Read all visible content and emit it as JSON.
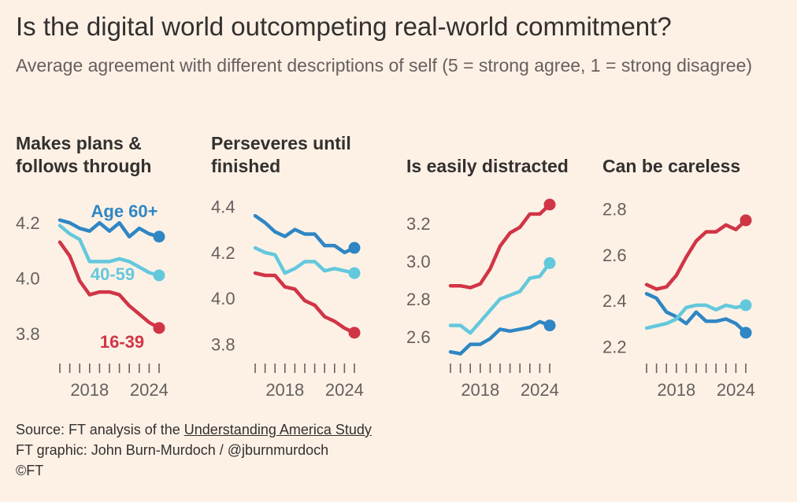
{
  "title": "Is the digital world outcompeting real-world commitment?",
  "subtitle": "Average agreement with different descriptions of self (5 = strong agree, 1 = strong disagree)",
  "colors": {
    "age60": "#2f86c4",
    "age40": "#64c8dc",
    "age16": "#d03546",
    "tick": "#66605c",
    "background": "#fdf1e6"
  },
  "footer": {
    "source_prefix": "Source: FT analysis of the ",
    "source_link": "Understanding America Study",
    "credit": "FT graphic: John Burn-Murdoch / @jburnmurdoch",
    "copyright": "©FT"
  },
  "chart_data": [
    {
      "type": "line",
      "title": "Makes plans & follows through",
      "x": [
        2015,
        2016,
        2017,
        2018,
        2019,
        2020,
        2021,
        2022,
        2023,
        2024,
        2025
      ],
      "ylim": [
        3.72,
        4.3
      ],
      "yticks": [
        3.8,
        4.0,
        4.2
      ],
      "ytick_labels": [
        "3.8",
        "4.0",
        "4.2"
      ],
      "xtick_labels": [
        "2018",
        "2024"
      ],
      "series": [
        {
          "name": "Age 60+",
          "key": "age60",
          "values": [
            4.21,
            4.2,
            4.18,
            4.17,
            4.2,
            4.17,
            4.2,
            4.15,
            4.18,
            4.16,
            4.15
          ]
        },
        {
          "name": "40-59",
          "key": "age40",
          "values": [
            4.19,
            4.16,
            4.14,
            4.06,
            4.06,
            4.06,
            4.07,
            4.06,
            4.04,
            4.02,
            4.01
          ]
        },
        {
          "name": "16-39",
          "key": "age16",
          "values": [
            4.13,
            4.08,
            3.99,
            3.94,
            3.95,
            3.95,
            3.94,
            3.9,
            3.87,
            3.84,
            3.82
          ]
        }
      ],
      "labels": [
        {
          "text": "Age 60+",
          "key": "age60"
        },
        {
          "text": "40-59",
          "key": "age40"
        },
        {
          "text": "16-39",
          "key": "age16"
        }
      ]
    },
    {
      "type": "line",
      "title": "Perseveres until finished",
      "x": [
        2015,
        2016,
        2017,
        2018,
        2019,
        2020,
        2021,
        2022,
        2023,
        2024,
        2025
      ],
      "ylim": [
        3.75,
        4.45
      ],
      "yticks": [
        3.8,
        4.0,
        4.2,
        4.4
      ],
      "ytick_labels": [
        "3.8",
        "4.0",
        "4.2",
        "4.4"
      ],
      "xtick_labels": [
        "2018",
        "2024"
      ],
      "series": [
        {
          "name": "",
          "key": "age60",
          "values": [
            4.36,
            4.33,
            4.29,
            4.27,
            4.3,
            4.28,
            4.28,
            4.23,
            4.23,
            4.2,
            4.22
          ]
        },
        {
          "name": "",
          "key": "age40",
          "values": [
            4.22,
            4.2,
            4.19,
            4.11,
            4.13,
            4.16,
            4.16,
            4.12,
            4.13,
            4.12,
            4.11
          ]
        },
        {
          "name": "",
          "key": "age16",
          "values": [
            4.11,
            4.1,
            4.1,
            4.05,
            4.04,
            3.99,
            3.97,
            3.92,
            3.9,
            3.87,
            3.85
          ]
        }
      ],
      "labels": []
    },
    {
      "type": "line",
      "title": "Is easily distracted",
      "x": [
        2015,
        2016,
        2017,
        2018,
        2019,
        2020,
        2021,
        2022,
        2023,
        2024,
        2025
      ],
      "ylim": [
        2.5,
        3.35
      ],
      "yticks": [
        2.6,
        2.8,
        3.0,
        3.2
      ],
      "ytick_labels": [
        "2.6",
        "2.8",
        "3.0",
        "3.2"
      ],
      "xtick_labels": [
        "2018",
        "2024"
      ],
      "series": [
        {
          "name": "",
          "key": "age60",
          "values": [
            2.52,
            2.51,
            2.56,
            2.56,
            2.59,
            2.64,
            2.63,
            2.64,
            2.65,
            2.68,
            2.66
          ]
        },
        {
          "name": "",
          "key": "age40",
          "values": [
            2.66,
            2.66,
            2.62,
            2.68,
            2.74,
            2.8,
            2.82,
            2.84,
            2.91,
            2.92,
            2.99
          ]
        },
        {
          "name": "",
          "key": "age16",
          "values": [
            2.87,
            2.87,
            2.86,
            2.88,
            2.96,
            3.08,
            3.15,
            3.18,
            3.25,
            3.25,
            3.3
          ]
        }
      ],
      "labels": []
    },
    {
      "type": "line",
      "title": "Can be careless",
      "x": [
        2015,
        2016,
        2017,
        2018,
        2019,
        2020,
        2021,
        2022,
        2023,
        2024,
        2025
      ],
      "ylim": [
        2.16,
        2.86
      ],
      "yticks": [
        2.2,
        2.4,
        2.6,
        2.8
      ],
      "ytick_labels": [
        "2.2",
        "2.4",
        "2.6",
        "2.8"
      ],
      "xtick_labels": [
        "2018",
        "2024"
      ],
      "series": [
        {
          "name": "",
          "key": "age60",
          "values": [
            2.43,
            2.41,
            2.35,
            2.33,
            2.3,
            2.35,
            2.31,
            2.31,
            2.32,
            2.3,
            2.26
          ]
        },
        {
          "name": "",
          "key": "age40",
          "values": [
            2.28,
            2.29,
            2.3,
            2.32,
            2.37,
            2.38,
            2.38,
            2.36,
            2.38,
            2.37,
            2.38
          ]
        },
        {
          "name": "",
          "key": "age16",
          "values": [
            2.47,
            2.45,
            2.46,
            2.51,
            2.59,
            2.66,
            2.7,
            2.7,
            2.73,
            2.71,
            2.75
          ]
        }
      ],
      "labels": []
    }
  ]
}
